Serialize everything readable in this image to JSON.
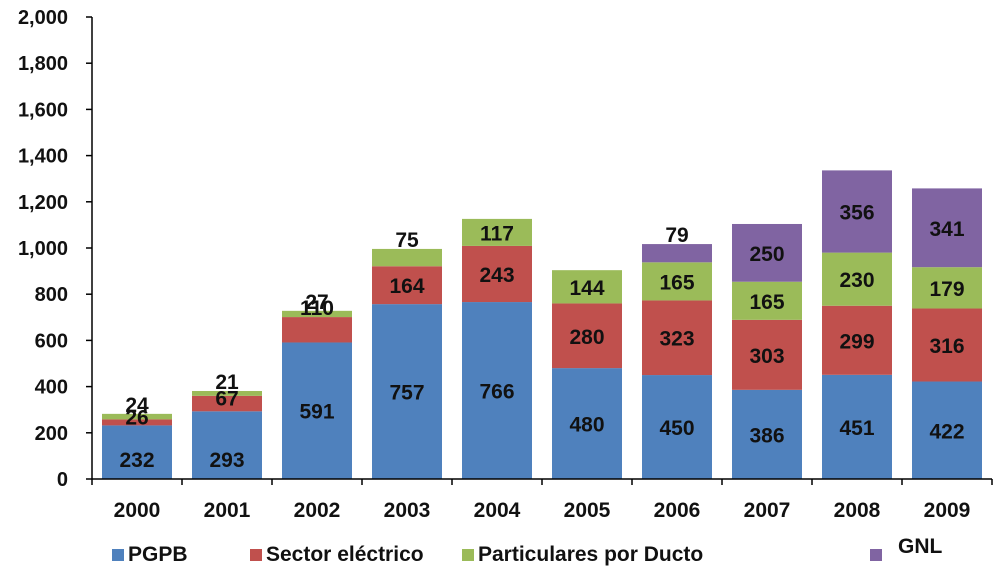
{
  "chart_data": {
    "type": "bar",
    "stacked": true,
    "categories": [
      "2000",
      "2001",
      "2002",
      "2003",
      "2004",
      "2005",
      "2006",
      "2007",
      "2008",
      "2009"
    ],
    "series": [
      {
        "name": "PGPB",
        "color": "#4f81bd",
        "values": [
          232,
          293,
          591,
          757,
          766,
          480,
          450,
          386,
          451,
          422
        ]
      },
      {
        "name": "Sector eléctrico",
        "color": "#c0504d",
        "values": [
          26,
          67,
          110,
          164,
          243,
          280,
          323,
          303,
          299,
          316
        ]
      },
      {
        "name": "Particulares por Ducto",
        "color": "#9bbb59",
        "values": [
          24,
          21,
          27,
          75,
          117,
          144,
          165,
          165,
          230,
          179
        ]
      },
      {
        "name": "GNL",
        "color": "#8064a2",
        "values": [
          0,
          0,
          0,
          0,
          0,
          0,
          79,
          250,
          356,
          341
        ]
      }
    ],
    "ylim": [
      0,
      2000
    ],
    "yticks": [
      0,
      200,
      400,
      600,
      800,
      1000,
      1200,
      1400,
      1600,
      1800,
      2000
    ],
    "ytick_labels": [
      "0",
      "200",
      "400",
      "600",
      "800",
      "1,000",
      "1,200",
      "1,400",
      "1,600",
      "1,800",
      "2,000"
    ],
    "title": "",
    "xlabel": "",
    "ylabel": "",
    "grid": false,
    "legend_position": "bottom"
  }
}
